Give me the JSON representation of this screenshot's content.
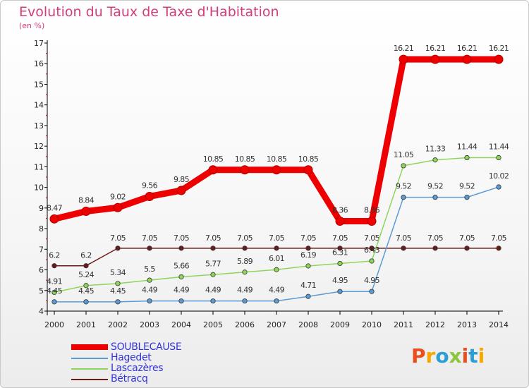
{
  "title": "Evolution du Taux de Taxe d'Habitation",
  "subtitle": "(en %)",
  "logo_text": "Proxiti",
  "colors": {
    "title": "#d23c7a",
    "legend_text": "#3333dd",
    "axis": "#000000"
  },
  "chart_data": {
    "type": "line",
    "title": "Evolution du Taux de Taxe d'Habitation",
    "subtitle": "(en %)",
    "xlabel": "",
    "ylabel": "",
    "x": [
      "2000",
      "2001",
      "2002",
      "2003",
      "2004",
      "2005",
      "2006",
      "2007",
      "2008",
      "2009",
      "2010",
      "2011",
      "2012",
      "2013",
      "2014"
    ],
    "ylim": [
      4,
      17
    ],
    "yticks": [
      "4",
      "5",
      "6",
      "7",
      "8",
      "9",
      "10",
      "11",
      "12",
      "13",
      "14",
      "15",
      "16",
      "17"
    ],
    "grid": false,
    "legend_position": "bottom-left",
    "series": [
      {
        "name": "SOUBLECAUSE",
        "color": "#ee0000",
        "values": [
          8.47,
          8.84,
          9.02,
          9.56,
          9.85,
          10.85,
          10.85,
          10.85,
          10.85,
          8.36,
          8.36,
          16.21,
          16.21,
          16.21,
          16.21
        ],
        "labels": [
          "8.47",
          "8.84",
          "9.02",
          "9.56",
          "9.85",
          "10.85",
          "10.85",
          "10.85",
          "10.85",
          "8.36",
          "8.36",
          "16.21",
          "16.21",
          "16.21",
          "16.21"
        ]
      },
      {
        "name": "Hagedet",
        "color": "#5b9bd5",
        "values": [
          4.45,
          4.45,
          4.45,
          4.49,
          4.49,
          4.49,
          4.49,
          4.49,
          4.71,
          4.95,
          4.95,
          9.52,
          9.52,
          9.52,
          10.02
        ],
        "labels": [
          "4.45",
          "4.45",
          "4.45",
          "4.49",
          "4.49",
          "4.49",
          "4.49",
          "4.49",
          "4.71",
          "4.95",
          "4.95",
          "9.52",
          "9.52",
          "9.52",
          "10.02"
        ]
      },
      {
        "name": "Lascazères",
        "color": "#8ed65b",
        "values": [
          4.91,
          5.24,
          5.34,
          5.5,
          5.66,
          5.77,
          5.89,
          6.01,
          6.19,
          6.31,
          6.43,
          11.05,
          11.33,
          11.44,
          11.44
        ],
        "labels": [
          "4.91",
          "5.24",
          "5.34",
          "5.5",
          "5.66",
          "5.77",
          "5.89",
          "6.01",
          "6.19",
          "6.31",
          "6.43",
          "11.05",
          "11.33",
          "11.44",
          "11.44"
        ]
      },
      {
        "name": "Bétracq",
        "color": "#6b1a1a",
        "values": [
          6.2,
          6.2,
          7.05,
          7.05,
          7.05,
          7.05,
          7.05,
          7.05,
          7.05,
          7.05,
          7.05,
          7.05,
          7.05,
          7.05,
          7.05
        ],
        "labels": [
          "6.2",
          "6.2",
          "7.05",
          "7.05",
          "7.05",
          "7.05",
          "7.05",
          "7.05",
          "7.05",
          "7.05",
          "7.05",
          "7.05",
          "7.05",
          "7.05",
          "7.05"
        ]
      }
    ]
  }
}
